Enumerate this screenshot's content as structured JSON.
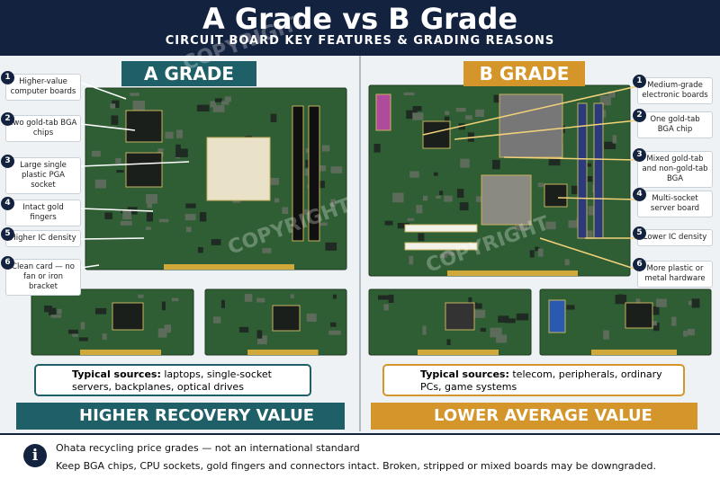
{
  "header": {
    "title": "A Grade vs B Grade",
    "subtitle": "CIRCUIT BOARD KEY FEATURES & GRADING REASONS"
  },
  "watermark": "COPYRIGHT",
  "a_grade": {
    "heading": "A GRADE",
    "features": [
      {
        "number": "1",
        "text": "Higher-value computer boards"
      },
      {
        "number": "2",
        "text": "Two gold-tab BGA chips"
      },
      {
        "number": "3",
        "text": "Large single plastic PGA socket"
      },
      {
        "number": "4",
        "text": "Intact gold fingers"
      },
      {
        "number": "5",
        "text": "Higher IC density"
      },
      {
        "number": "6",
        "text": "Clean card — no fan or iron bracket"
      }
    ],
    "sources_label": "Typical sources:",
    "sources_text": "laptops, single-socket servers, backplanes, optical drives",
    "value": "HIGHER RECOVERY VALUE"
  },
  "b_grade": {
    "heading": "B GRADE",
    "features": [
      {
        "number": "1",
        "text": "Medium-grade electronic boards"
      },
      {
        "number": "2",
        "text": "One gold-tab BGA chip"
      },
      {
        "number": "3",
        "text": "Mixed gold-tab and non-gold-tab BGA"
      },
      {
        "number": "4",
        "text": "Multi-socket server board"
      },
      {
        "number": "5",
        "text": "Lower IC density"
      },
      {
        "number": "6",
        "text": "More plastic or metal hardware"
      }
    ],
    "sources_label": "Typical sources:",
    "sources_text": "telecom, peripherals, ordinary PCs, game systems",
    "value": "LOWER AVERAGE VALUE"
  },
  "footer": {
    "line1": "Ohata recycling price grades — not an international standard",
    "line2": "Keep BGA chips, CPU sockets, gold fingers and connectors intact. Broken, stripped or mixed boards may be downgraded."
  }
}
